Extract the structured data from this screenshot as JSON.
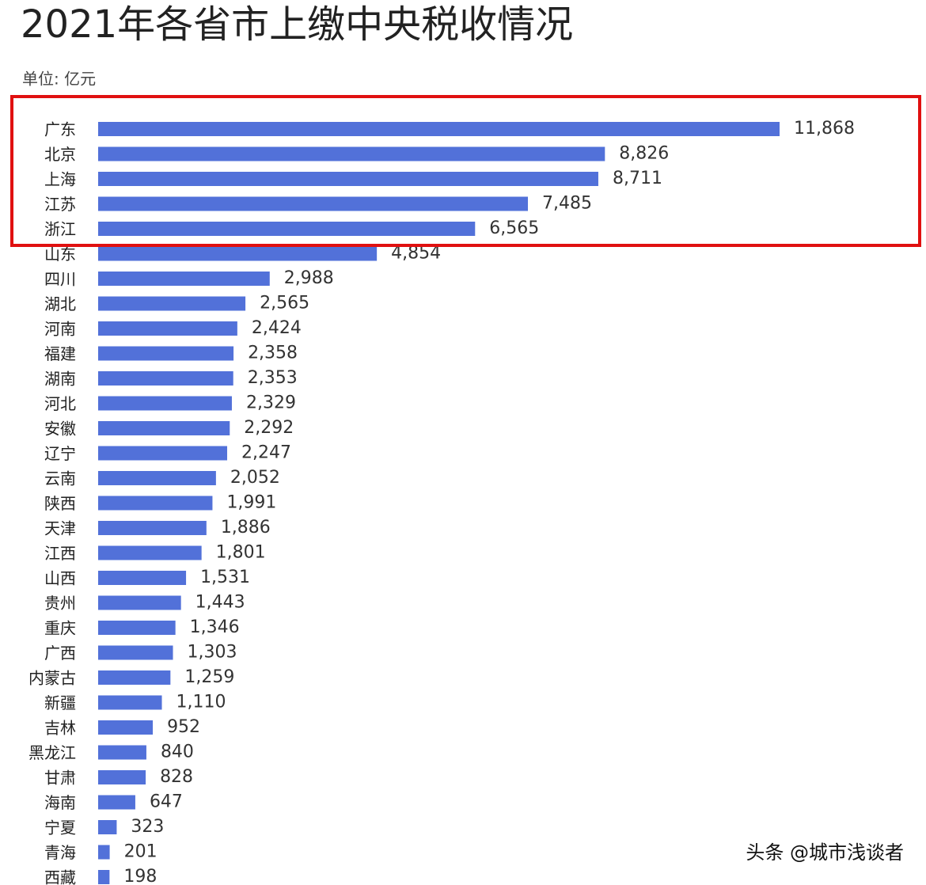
{
  "chart_data": {
    "type": "bar",
    "orientation": "horizontal",
    "title": "2021年各省市上缴中央税收情况",
    "subtitle": "单位: 亿元",
    "watermark": "头条 @城市浅谈者",
    "color": "#5271d9",
    "categories": [
      "广东",
      "北京",
      "上海",
      "江苏",
      "浙江",
      "山东",
      "四川",
      "湖北",
      "河南",
      "福建",
      "湖南",
      "河北",
      "安徽",
      "辽宁",
      "云南",
      "陕西",
      "天津",
      "江西",
      "山西",
      "贵州",
      "重庆",
      "广西",
      "内蒙古",
      "新疆",
      "吉林",
      "黑龙江",
      "甘肃",
      "海南",
      "宁夏",
      "青海",
      "西藏"
    ],
    "values": [
      11868,
      8826,
      8711,
      7485,
      6565,
      4854,
      2988,
      2565,
      2424,
      2358,
      2353,
      2329,
      2292,
      2247,
      2052,
      1991,
      1886,
      1801,
      1531,
      1443,
      1346,
      1303,
      1259,
      1110,
      952,
      840,
      828,
      647,
      323,
      201,
      198
    ],
    "value_labels": [
      "11,868",
      "8,826",
      "8,711",
      "7,485",
      "6,565",
      "4,854",
      "2,988",
      "2,565",
      "2,424",
      "2,358",
      "2,353",
      "2,329",
      "2,292",
      "2,247",
      "2,052",
      "1,991",
      "1,886",
      "1,801",
      "1,531",
      "1,443",
      "1,346",
      "1,303",
      "1,259",
      "1,110",
      "952",
      "840",
      "828",
      "647",
      "323",
      "201",
      "198"
    ]
  }
}
